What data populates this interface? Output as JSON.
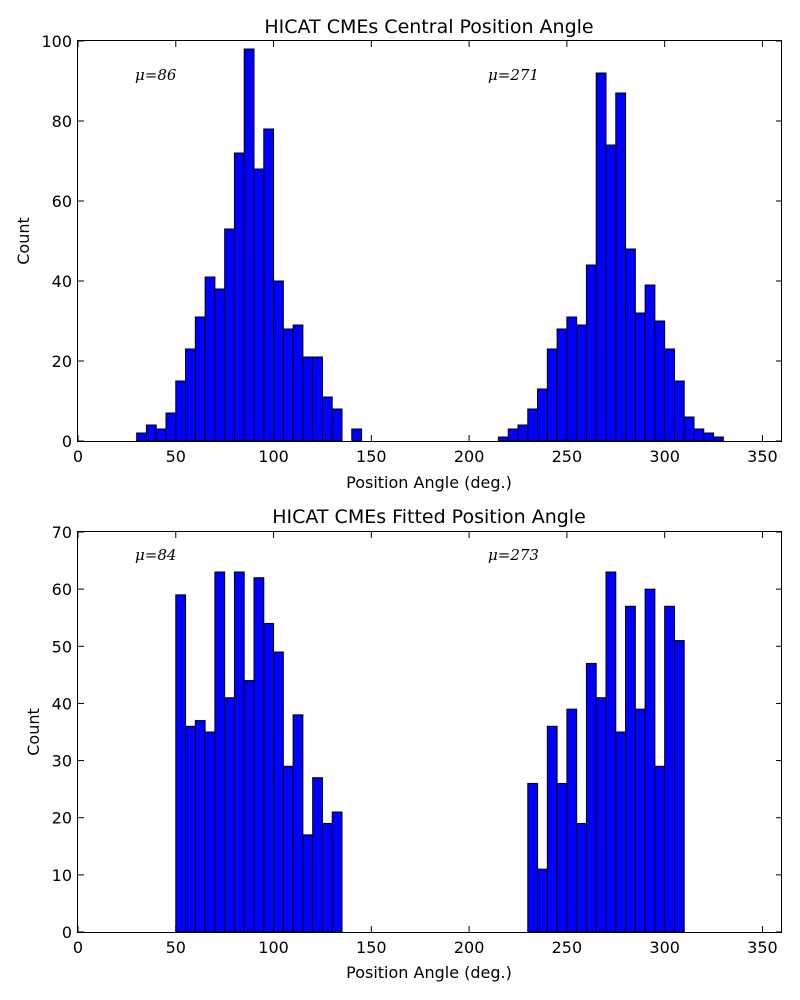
{
  "chart_data": [
    {
      "type": "bar",
      "title": "HICAT CMEs Central Position Angle",
      "xlabel": "Position Angle (deg.)",
      "ylabel": "Count",
      "xlim": [
        0,
        360
      ],
      "ylim": [
        0,
        100
      ],
      "xticks": [
        "0",
        "50",
        "100",
        "150",
        "200",
        "250",
        "300",
        "350"
      ],
      "yticks": [
        "0",
        "20",
        "40",
        "60",
        "80",
        "100"
      ],
      "bin_width": 5,
      "bins": [
        {
          "x": 30,
          "count": 2
        },
        {
          "x": 35,
          "count": 4
        },
        {
          "x": 40,
          "count": 3
        },
        {
          "x": 45,
          "count": 7
        },
        {
          "x": 50,
          "count": 15
        },
        {
          "x": 55,
          "count": 23
        },
        {
          "x": 60,
          "count": 31
        },
        {
          "x": 65,
          "count": 41
        },
        {
          "x": 70,
          "count": 38
        },
        {
          "x": 75,
          "count": 53
        },
        {
          "x": 80,
          "count": 72
        },
        {
          "x": 85,
          "count": 98
        },
        {
          "x": 90,
          "count": 68
        },
        {
          "x": 95,
          "count": 78
        },
        {
          "x": 100,
          "count": 40
        },
        {
          "x": 105,
          "count": 28
        },
        {
          "x": 110,
          "count": 29
        },
        {
          "x": 115,
          "count": 21
        },
        {
          "x": 120,
          "count": 21
        },
        {
          "x": 125,
          "count": 11
        },
        {
          "x": 130,
          "count": 8
        },
        {
          "x": 140,
          "count": 3
        },
        {
          "x": 215,
          "count": 1
        },
        {
          "x": 220,
          "count": 3
        },
        {
          "x": 225,
          "count": 4
        },
        {
          "x": 230,
          "count": 8
        },
        {
          "x": 235,
          "count": 13
        },
        {
          "x": 240,
          "count": 23
        },
        {
          "x": 245,
          "count": 28
        },
        {
          "x": 250,
          "count": 31
        },
        {
          "x": 255,
          "count": 29
        },
        {
          "x": 260,
          "count": 44
        },
        {
          "x": 265,
          "count": 92
        },
        {
          "x": 270,
          "count": 74
        },
        {
          "x": 275,
          "count": 87
        },
        {
          "x": 280,
          "count": 48
        },
        {
          "x": 285,
          "count": 32
        },
        {
          "x": 290,
          "count": 39
        },
        {
          "x": 295,
          "count": 30
        },
        {
          "x": 300,
          "count": 23
        },
        {
          "x": 305,
          "count": 15
        },
        {
          "x": 310,
          "count": 6
        },
        {
          "x": 315,
          "count": 3
        },
        {
          "x": 320,
          "count": 2
        },
        {
          "x": 325,
          "count": 1
        }
      ],
      "annotations": [
        {
          "text": "μ=86",
          "x": 30,
          "y": 90
        },
        {
          "text": "μ=271",
          "x": 210,
          "y": 90
        }
      ]
    },
    {
      "type": "bar",
      "title": "HICAT CMEs Fitted Position Angle",
      "xlabel": "Position Angle (deg.)",
      "ylabel": "Count",
      "xlim": [
        0,
        360
      ],
      "ylim": [
        0,
        70
      ],
      "xticks": [
        "0",
        "50",
        "100",
        "150",
        "200",
        "250",
        "300",
        "350"
      ],
      "yticks": [
        "0",
        "10",
        "20",
        "30",
        "40",
        "50",
        "60",
        "70"
      ],
      "bin_width": 5,
      "bins": [
        {
          "x": 50,
          "count": 59
        },
        {
          "x": 55,
          "count": 36
        },
        {
          "x": 60,
          "count": 37
        },
        {
          "x": 65,
          "count": 35
        },
        {
          "x": 70,
          "count": 63
        },
        {
          "x": 75,
          "count": 41
        },
        {
          "x": 80,
          "count": 63
        },
        {
          "x": 85,
          "count": 44
        },
        {
          "x": 90,
          "count": 62
        },
        {
          "x": 95,
          "count": 54
        },
        {
          "x": 100,
          "count": 49
        },
        {
          "x": 105,
          "count": 29
        },
        {
          "x": 110,
          "count": 38
        },
        {
          "x": 115,
          "count": 17
        },
        {
          "x": 120,
          "count": 27
        },
        {
          "x": 125,
          "count": 19
        },
        {
          "x": 130,
          "count": 21
        },
        {
          "x": 230,
          "count": 26
        },
        {
          "x": 235,
          "count": 11
        },
        {
          "x": 240,
          "count": 36
        },
        {
          "x": 245,
          "count": 26
        },
        {
          "x": 250,
          "count": 39
        },
        {
          "x": 255,
          "count": 19
        },
        {
          "x": 260,
          "count": 47
        },
        {
          "x": 265,
          "count": 41
        },
        {
          "x": 270,
          "count": 63
        },
        {
          "x": 275,
          "count": 35
        },
        {
          "x": 280,
          "count": 57
        },
        {
          "x": 285,
          "count": 39
        },
        {
          "x": 290,
          "count": 60
        },
        {
          "x": 295,
          "count": 29
        },
        {
          "x": 300,
          "count": 57
        },
        {
          "x": 305,
          "count": 51
        }
      ],
      "annotations": [
        {
          "text": "μ=84",
          "x": 30,
          "y": 65
        },
        {
          "text": "μ=273",
          "x": 210,
          "y": 65
        }
      ]
    }
  ]
}
